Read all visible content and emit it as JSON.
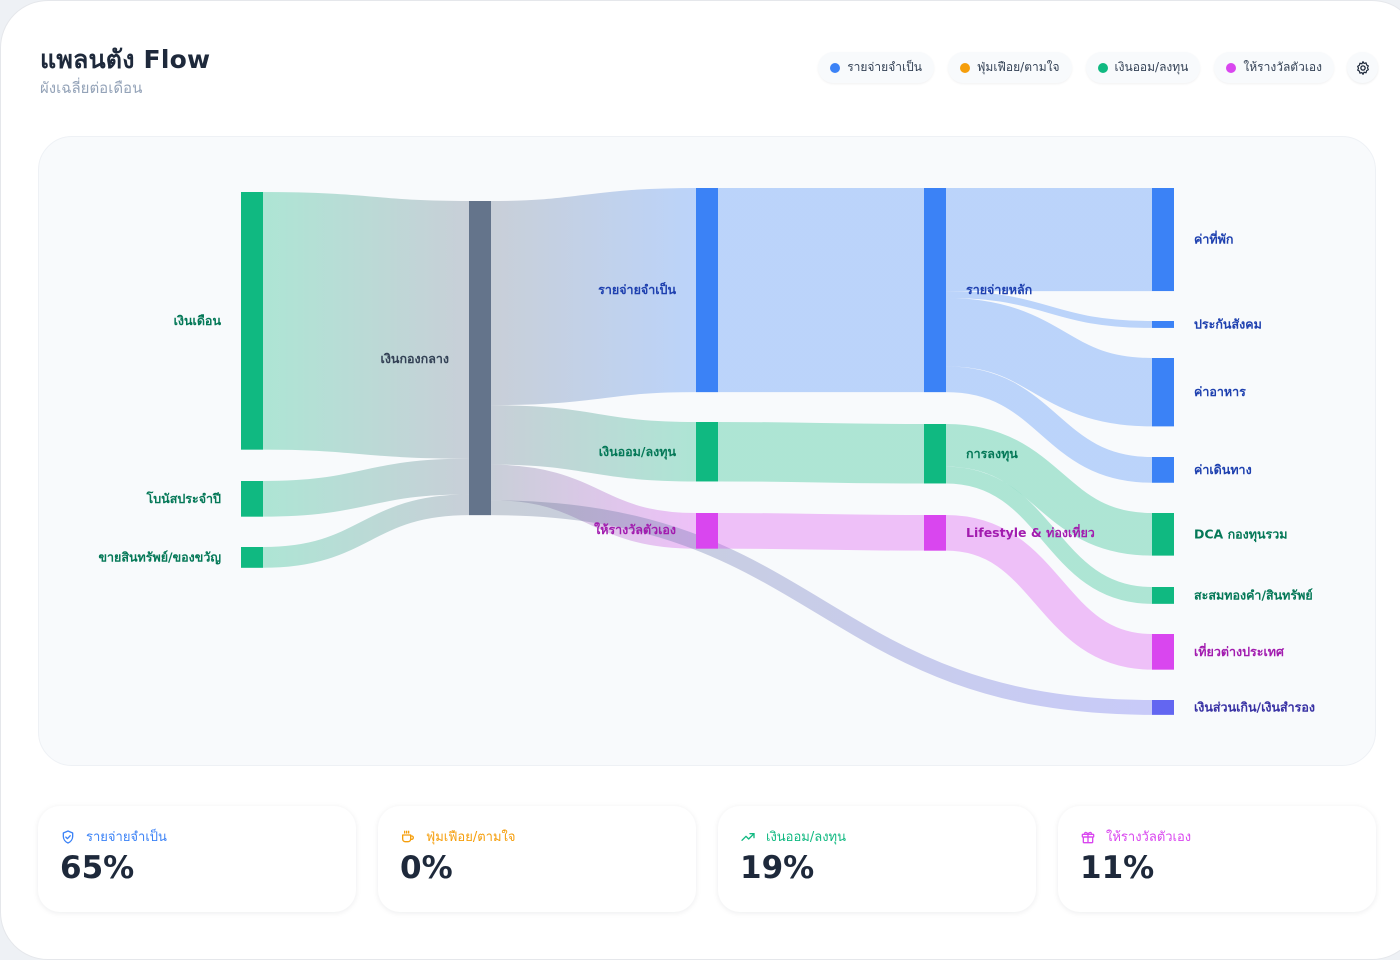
{
  "header": {
    "title": "แพลนตัง Flow",
    "subtitle": "ผังเฉลี่ยต่อเดือน"
  },
  "legend": [
    {
      "label": "รายจ่ายจำเป็น",
      "color": "#3b82f6"
    },
    {
      "label": "ฟุ่มเฟือย/ตามใจ",
      "color": "#f59e0b"
    },
    {
      "label": "เงินออม/ลงทุน",
      "color": "#10b981"
    },
    {
      "label": "ให้รางวัลตัวเอง",
      "color": "#d946ef"
    }
  ],
  "settings_icon": "gear-icon",
  "sankey": {
    "nodes": [
      {
        "id": "salary",
        "label": "เงินเดือน",
        "color": "#10b981",
        "col": 0
      },
      {
        "id": "bonus",
        "label": "โบนัสประจำปี",
        "color": "#10b981",
        "col": 0
      },
      {
        "id": "sale",
        "label": "ขายสินทรัพย์/ของขวัญ",
        "color": "#10b981",
        "col": 0
      },
      {
        "id": "pool",
        "label": "เงินกองกลาง",
        "color": "#64748b",
        "col": 1
      },
      {
        "id": "essential",
        "label": "รายจ่ายจำเป็น",
        "color": "#3b82f6",
        "col": 2
      },
      {
        "id": "savings",
        "label": "เงินออม/ลงทุน",
        "color": "#10b981",
        "col": 2
      },
      {
        "id": "reward",
        "label": "ให้รางวัลตัวเอง",
        "color": "#d946ef",
        "col": 2
      },
      {
        "id": "main_exp",
        "label": "รายจ่ายหลัก",
        "color": "#3b82f6",
        "col": 3
      },
      {
        "id": "invest",
        "label": "การลงทุน",
        "color": "#10b981",
        "col": 3
      },
      {
        "id": "lifestyle",
        "label": "Lifestyle & ท่องเที่ยว",
        "color": "#d946ef",
        "col": 3
      },
      {
        "id": "rent",
        "label": "ค่าที่พัก",
        "color": "#3b82f6",
        "col": 4
      },
      {
        "id": "social",
        "label": "ประกันสังคม",
        "color": "#3b82f6",
        "col": 4
      },
      {
        "id": "food",
        "label": "ค่าอาหาร",
        "color": "#3b82f6",
        "col": 4
      },
      {
        "id": "travel",
        "label": "ค่าเดินทาง",
        "color": "#3b82f6",
        "col": 4
      },
      {
        "id": "dca",
        "label": "DCA กองทุนรวม",
        "color": "#10b981",
        "col": 4
      },
      {
        "id": "gold",
        "label": "สะสมทองคำ/สินทรัพย์",
        "color": "#10b981",
        "col": 4
      },
      {
        "id": "trip",
        "label": "เที่ยวต่างประเทศ",
        "color": "#d946ef",
        "col": 4
      },
      {
        "id": "surplus",
        "label": "เงินส่วนเกิน/เงินสำรอง",
        "color": "#6366f1",
        "col": 4
      }
    ],
    "links": [
      {
        "source": "salary",
        "target": "pool",
        "value": 520
      },
      {
        "source": "bonus",
        "target": "pool",
        "value": 72
      },
      {
        "source": "sale",
        "target": "pool",
        "value": 42
      },
      {
        "source": "pool",
        "target": "essential",
        "value": 412
      },
      {
        "source": "pool",
        "target": "savings",
        "value": 120
      },
      {
        "source": "pool",
        "target": "reward",
        "value": 72
      },
      {
        "source": "pool",
        "target": "surplus",
        "value": 30
      },
      {
        "source": "essential",
        "target": "main_exp",
        "value": 412
      },
      {
        "source": "savings",
        "target": "invest",
        "value": 120
      },
      {
        "source": "reward",
        "target": "lifestyle",
        "value": 72
      },
      {
        "source": "main_exp",
        "target": "rent",
        "value": 208
      },
      {
        "source": "main_exp",
        "target": "social",
        "value": 14
      },
      {
        "source": "main_exp",
        "target": "food",
        "value": 138
      },
      {
        "source": "main_exp",
        "target": "travel",
        "value": 52
      },
      {
        "source": "invest",
        "target": "dca",
        "value": 86
      },
      {
        "source": "invest",
        "target": "gold",
        "value": 34
      },
      {
        "source": "lifestyle",
        "target": "trip",
        "value": 72
      }
    ]
  },
  "stats": [
    {
      "label": "รายจ่ายจำเป็น",
      "value": "65%",
      "color": "#3b82f6",
      "icon": "shield-check-icon"
    },
    {
      "label": "ฟุ่มเฟือย/ตามใจ",
      "value": "0%",
      "color": "#f59e0b",
      "icon": "coffee-cup-icon"
    },
    {
      "label": "เงินออม/ลงทุน",
      "value": "19%",
      "color": "#10b981",
      "icon": "trending-up-icon"
    },
    {
      "label": "ให้รางวัลตัวเอง",
      "value": "11%",
      "color": "#d946ef",
      "icon": "gift-icon"
    }
  ]
}
